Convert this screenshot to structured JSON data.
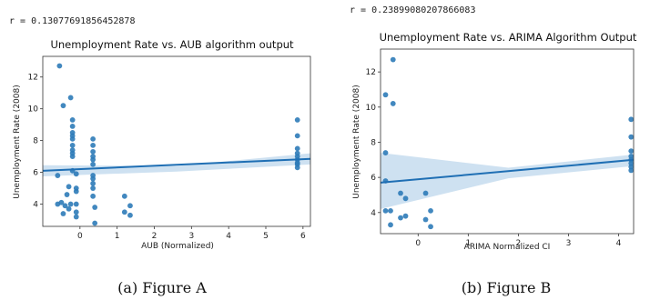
{
  "figures": [
    {
      "r_text": "r = 0.13077691856452878",
      "caption": "(a) Figure A"
    },
    {
      "r_text": "r = 0.23899080207866083",
      "caption": "(b) Figure B"
    }
  ],
  "chart_data": [
    {
      "type": "scatter",
      "title": "Unemployment Rate vs. AUB algorithm output",
      "xlabel": "AUB (Normalized)",
      "ylabel": "Unemployment Rate (2008)",
      "xlim": [
        -1.0,
        6.2
      ],
      "ylim": [
        2.6,
        13.3
      ],
      "xticks": [
        0,
        1,
        2,
        3,
        4,
        5,
        6
      ],
      "yticks": [
        4,
        6,
        8,
        10,
        12
      ],
      "point_color": "#2e7bb8",
      "fit_color": "#1f6fb4",
      "band_color": "#c6dcef",
      "fit_line": {
        "x": [
          -1.0,
          6.2
        ],
        "y": [
          6.1,
          6.85
        ]
      },
      "ci_band": {
        "x": [
          -1.0,
          2.6,
          6.2
        ],
        "upper": [
          6.45,
          6.4,
          7.2
        ],
        "lower": [
          5.75,
          6.05,
          6.5
        ]
      },
      "points": [
        [
          -0.55,
          12.7
        ],
        [
          -0.45,
          10.2
        ],
        [
          -0.25,
          10.7
        ],
        [
          -0.2,
          9.3
        ],
        [
          -0.2,
          8.9
        ],
        [
          -0.2,
          8.5
        ],
        [
          -0.2,
          8.3
        ],
        [
          -0.2,
          8.1
        ],
        [
          -0.2,
          7.7
        ],
        [
          -0.2,
          7.4
        ],
        [
          -0.2,
          7.2
        ],
        [
          -0.2,
          7.0
        ],
        [
          -0.2,
          6.1
        ],
        [
          -0.1,
          5.9
        ],
        [
          -0.1,
          5.0
        ],
        [
          -0.1,
          4.8
        ],
        [
          -0.1,
          4.0
        ],
        [
          -0.1,
          3.5
        ],
        [
          -0.1,
          3.2
        ],
        [
          -0.6,
          5.8
        ],
        [
          -0.6,
          4.0
        ],
        [
          -0.5,
          4.1
        ],
        [
          -0.4,
          3.9
        ],
        [
          -0.45,
          3.4
        ],
        [
          -0.35,
          4.6
        ],
        [
          -0.3,
          3.7
        ],
        [
          -0.3,
          5.1
        ],
        [
          -0.25,
          4.0
        ],
        [
          0.35,
          8.1
        ],
        [
          0.35,
          7.7
        ],
        [
          0.35,
          7.3
        ],
        [
          0.35,
          7.0
        ],
        [
          0.35,
          6.8
        ],
        [
          0.35,
          6.5
        ],
        [
          0.35,
          5.8
        ],
        [
          0.35,
          5.6
        ],
        [
          0.35,
          5.3
        ],
        [
          0.35,
          5.0
        ],
        [
          0.35,
          4.5
        ],
        [
          0.4,
          3.8
        ],
        [
          0.4,
          2.8
        ],
        [
          1.2,
          4.5
        ],
        [
          1.2,
          3.5
        ],
        [
          1.35,
          3.9
        ],
        [
          1.35,
          3.3
        ],
        [
          5.85,
          9.3
        ],
        [
          5.85,
          8.3
        ],
        [
          5.85,
          7.5
        ],
        [
          5.85,
          7.2
        ],
        [
          5.85,
          7.0
        ],
        [
          5.85,
          6.8
        ],
        [
          5.85,
          6.6
        ],
        [
          5.85,
          6.5
        ],
        [
          5.85,
          6.3
        ]
      ]
    },
    {
      "type": "scatter",
      "title": "Unemployment Rate vs. ARIMA Algorithm Output",
      "xlabel": "ARIMA Normalized CI",
      "ylabel": "Unemployment Rate (2008)",
      "xlim": [
        -0.75,
        4.3
      ],
      "ylim": [
        2.8,
        13.3
      ],
      "xticks": [
        0,
        1,
        2,
        3,
        4
      ],
      "yticks": [
        4,
        6,
        8,
        10,
        12
      ],
      "point_color": "#2e7bb8",
      "fit_color": "#1f6fb4",
      "band_color": "#c6dcef",
      "fit_line": {
        "x": [
          -0.75,
          4.3
        ],
        "y": [
          5.7,
          7.0
        ]
      },
      "ci_band": {
        "x": [
          -0.75,
          1.8,
          4.3
        ],
        "upper": [
          7.4,
          6.55,
          7.3
        ],
        "lower": [
          4.2,
          5.95,
          6.65
        ]
      },
      "points": [
        [
          -0.5,
          12.7
        ],
        [
          -0.65,
          10.7
        ],
        [
          -0.5,
          10.2
        ],
        [
          -0.65,
          7.4
        ],
        [
          -0.65,
          5.8
        ],
        [
          -0.65,
          4.1
        ],
        [
          -0.55,
          4.1
        ],
        [
          -0.55,
          3.3
        ],
        [
          -0.35,
          5.1
        ],
        [
          -0.35,
          3.7
        ],
        [
          -0.25,
          4.8
        ],
        [
          -0.25,
          3.8
        ],
        [
          0.15,
          5.1
        ],
        [
          0.15,
          3.6
        ],
        [
          0.25,
          4.1
        ],
        [
          0.25,
          3.2
        ],
        [
          4.25,
          9.3
        ],
        [
          4.25,
          8.3
        ],
        [
          4.25,
          7.5
        ],
        [
          4.25,
          7.2
        ],
        [
          4.25,
          7.0
        ],
        [
          4.25,
          6.8
        ],
        [
          4.25,
          6.6
        ],
        [
          4.25,
          6.4
        ]
      ]
    }
  ]
}
